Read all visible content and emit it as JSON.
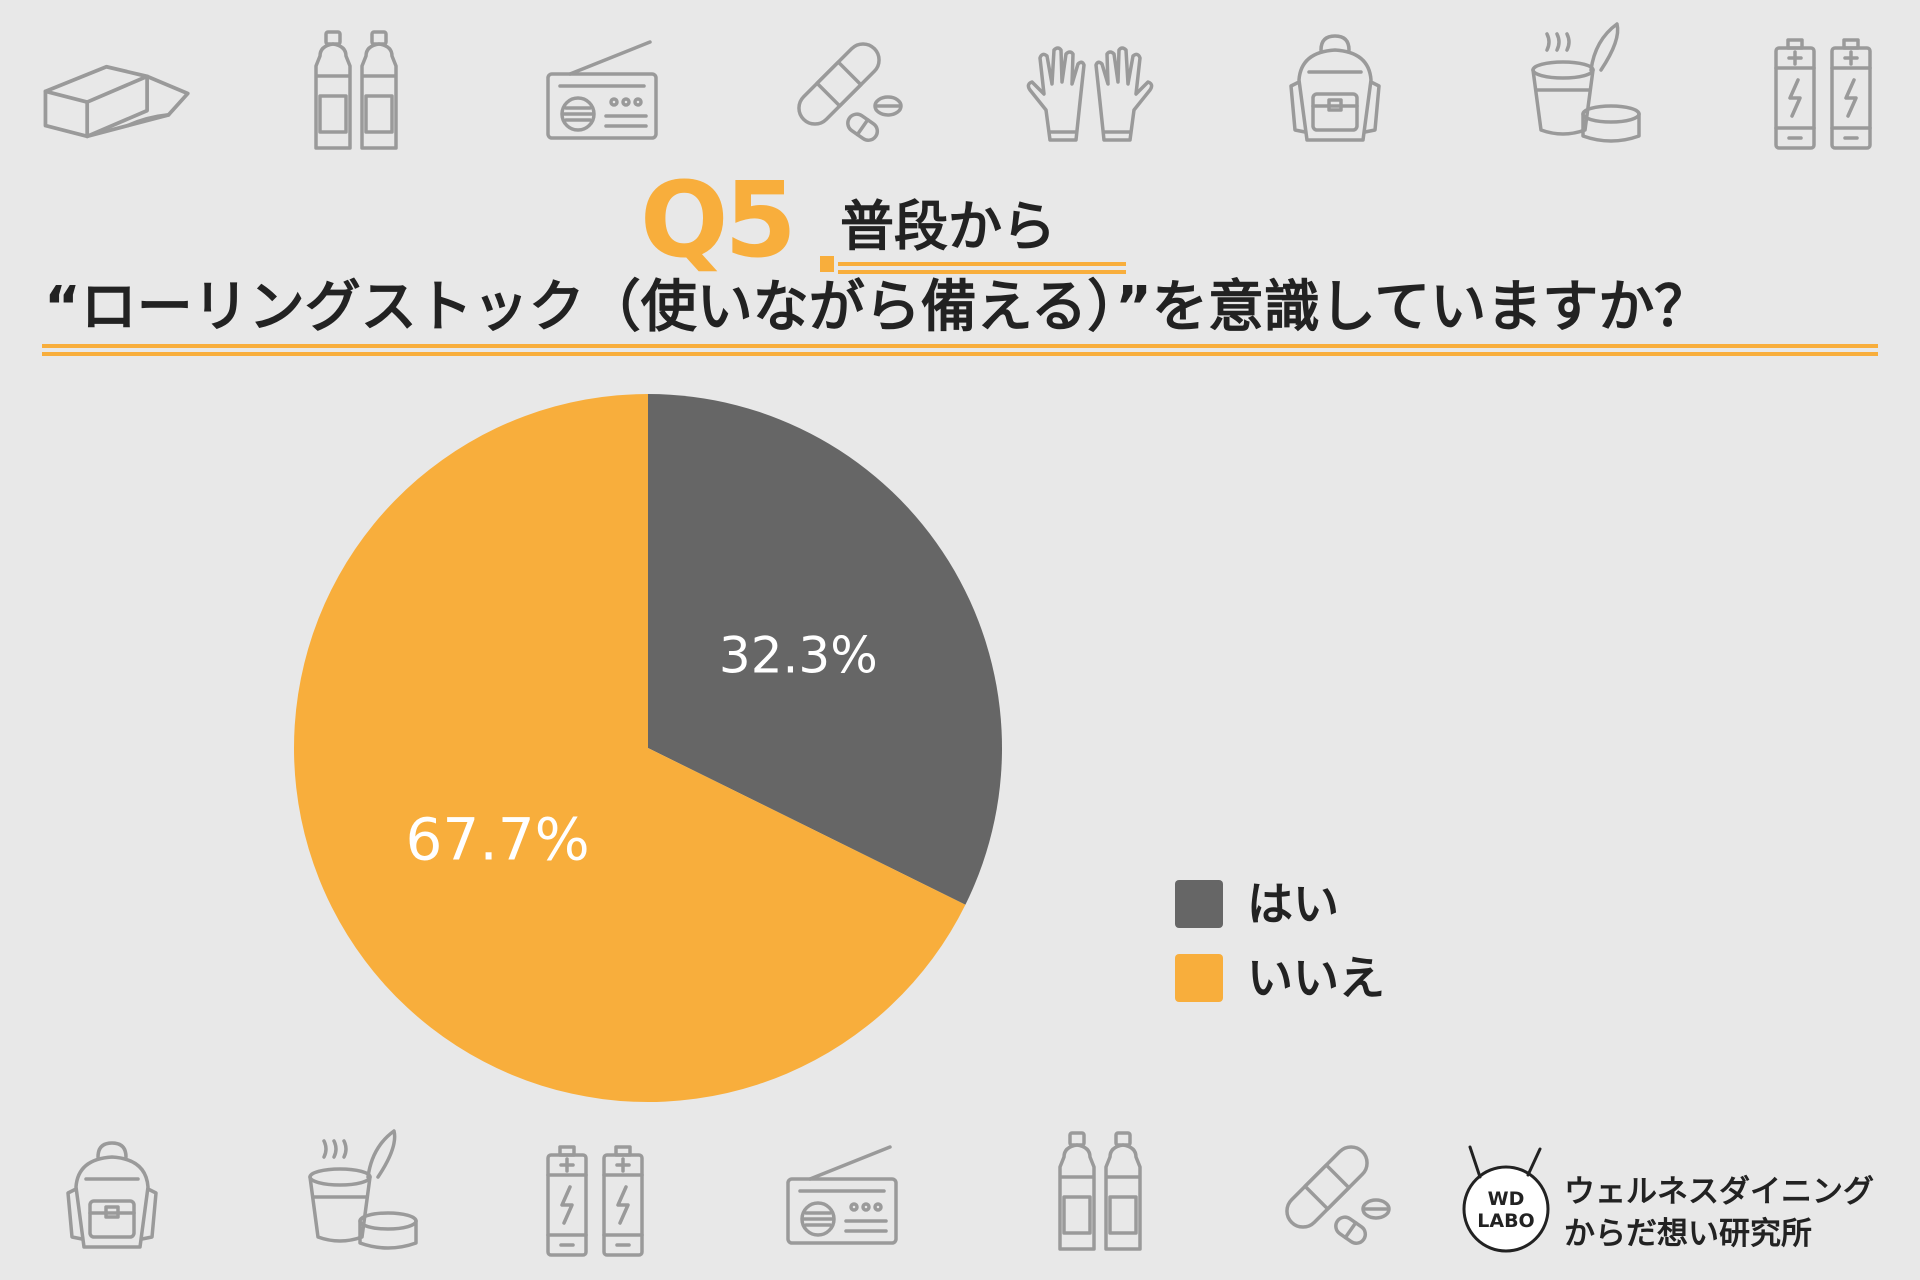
{
  "header": {
    "question_number": "Q5",
    "question_sub": "普段から",
    "question_text": "“ローリングストック（使いながら備える）”を意識していますか？"
  },
  "chart_data": {
    "type": "pie",
    "categories": [
      "はい",
      "いいえ"
    ],
    "values": [
      32.3,
      67.7
    ],
    "value_labels": [
      "32.3%",
      "67.7%"
    ],
    "colors": [
      "#666666",
      "#f8ae3c"
    ],
    "legend_position": "right",
    "start_angle": "top",
    "direction": "clockwise"
  },
  "legend": {
    "items": [
      {
        "label": "はい",
        "color": "#666666"
      },
      {
        "label": "いいえ",
        "color": "#f8ae3c"
      }
    ]
  },
  "brand": {
    "logo_line1": "WD",
    "logo_line2": "LABO",
    "name_line1": "ウェルネスダイニング",
    "name_line2": "からだ想い研究所"
  },
  "decor_icons": {
    "top": [
      "plastic-wrap-icon",
      "water-bottles-icon",
      "radio-icon",
      "bandage-pills-icon",
      "gloves-icon",
      "backpack-icon",
      "instant-food-icon",
      "batteries-icon"
    ],
    "bottom": [
      "backpack-icon",
      "instant-food-icon",
      "batteries-icon",
      "radio-icon",
      "water-bottles-icon",
      "bandage-pills-icon"
    ]
  },
  "colors": {
    "accent": "#f8ae3c",
    "dark_slice": "#666666",
    "icon_stroke": "#9a9a9a",
    "background": "#e8e8e8",
    "text": "#222222"
  }
}
